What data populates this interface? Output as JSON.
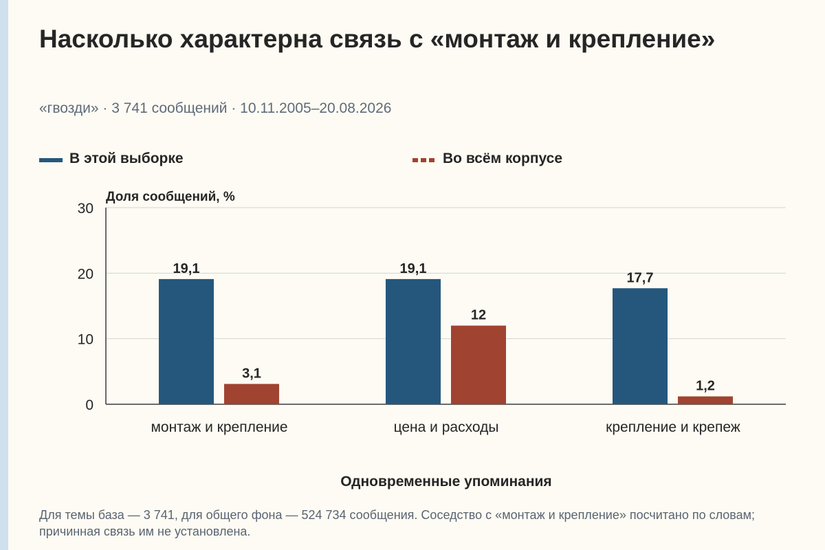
{
  "title": "Насколько характерна связь с «монтаж и крепление»",
  "subtitle": "«гвозди» · 3 741 сообщений · 10.11.2005–20.08.2026",
  "legend": [
    {
      "label": "В этой выборке",
      "color": "#25577d",
      "style": "solid"
    },
    {
      "label": "Во всём корпусе",
      "color": "#a04331",
      "style": "dashed"
    }
  ],
  "footnote": "Для темы база — 3 741, для общего фона — 524 734 сообщения. Соседство с «монтаж и крепление» посчитано по словам; причинная связь им не установлена.",
  "chart_data": {
    "type": "bar",
    "title": "Насколько характерна связь с «монтаж и крепление»",
    "ylabel": "Доля сообщений, %",
    "xlabel": "Одновременные упоминания",
    "ylim": [
      0,
      30
    ],
    "yticks": [
      "0",
      "10",
      "20",
      "30"
    ],
    "grid": true,
    "legend_position": "top",
    "categories": [
      "монтаж и крепление",
      "цена и расходы",
      "крепление и крепеж"
    ],
    "series": [
      {
        "name": "В этой выборке",
        "values": [
          19.1,
          19.1,
          17.7
        ],
        "labels": [
          "19,1",
          "19,1",
          "17,7"
        ],
        "color": "#25577d"
      },
      {
        "name": "Во всём корпусе",
        "values": [
          3.1,
          12,
          1.2
        ],
        "labels": [
          "3,1",
          "12",
          "1,2"
        ],
        "color": "#a04331"
      }
    ]
  }
}
